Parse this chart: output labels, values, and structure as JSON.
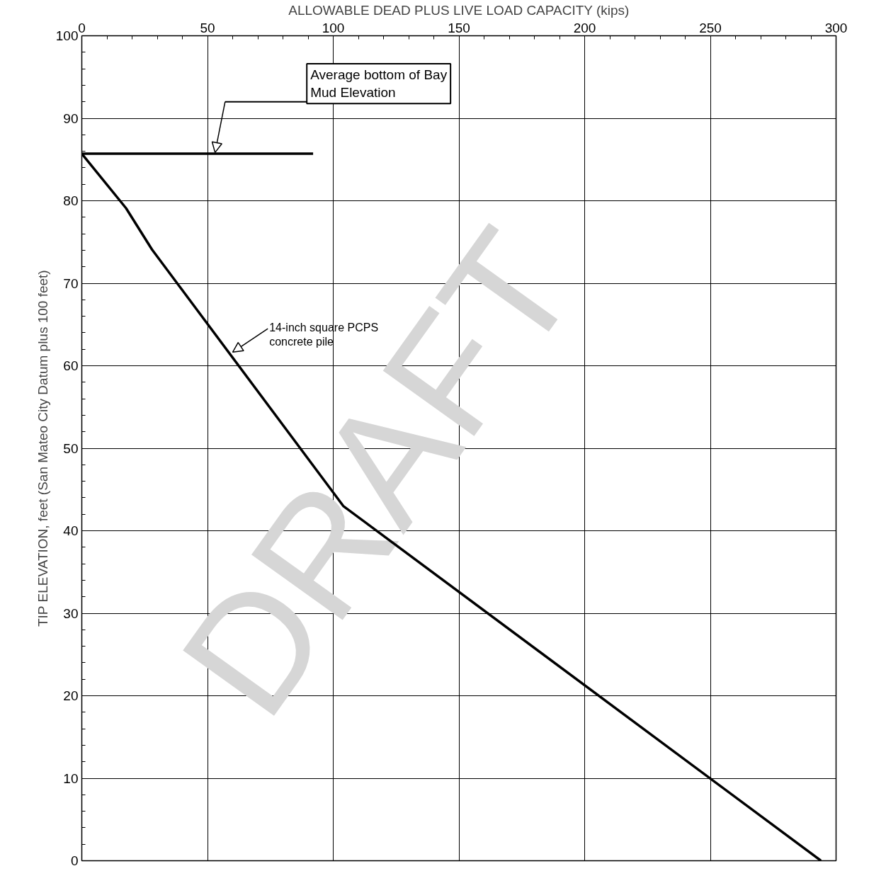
{
  "chart_data": {
    "type": "line",
    "xlabel": "ALLOWABLE DEAD PLUS LIVE LOAD CAPACITY (kips)",
    "ylabel": "TIP ELEVATION, feet (San Mateo City Datum plus 100 feet)",
    "xlim": [
      0,
      300
    ],
    "xticks": [
      0,
      50,
      100,
      150,
      200,
      250,
      300
    ],
    "ylim": [
      0,
      100
    ],
    "yticks": [
      0,
      10,
      20,
      30,
      40,
      50,
      60,
      70,
      80,
      90,
      100
    ],
    "grid": true,
    "marker": "none",
    "line_style": "solid",
    "series": [
      {
        "color": "#000000",
        "x": [
          0,
          17.6,
          27.9,
          104,
          294
        ],
        "values": [
          85.7,
          79.1,
          74.1,
          43,
          0
        ]
      },
      {
        "color": "#000000",
        "x": [
          0,
          92
        ],
        "values": [
          85.7,
          85.7
        ]
      }
    ],
    "annotations": [
      "Average bottom of Bay\nMud Elevation",
      {
        "text": "14-inch square PCPS\nconcrete pile",
        "x": 60,
        "y": 61.5
      },
      "DRAFT"
    ]
  }
}
